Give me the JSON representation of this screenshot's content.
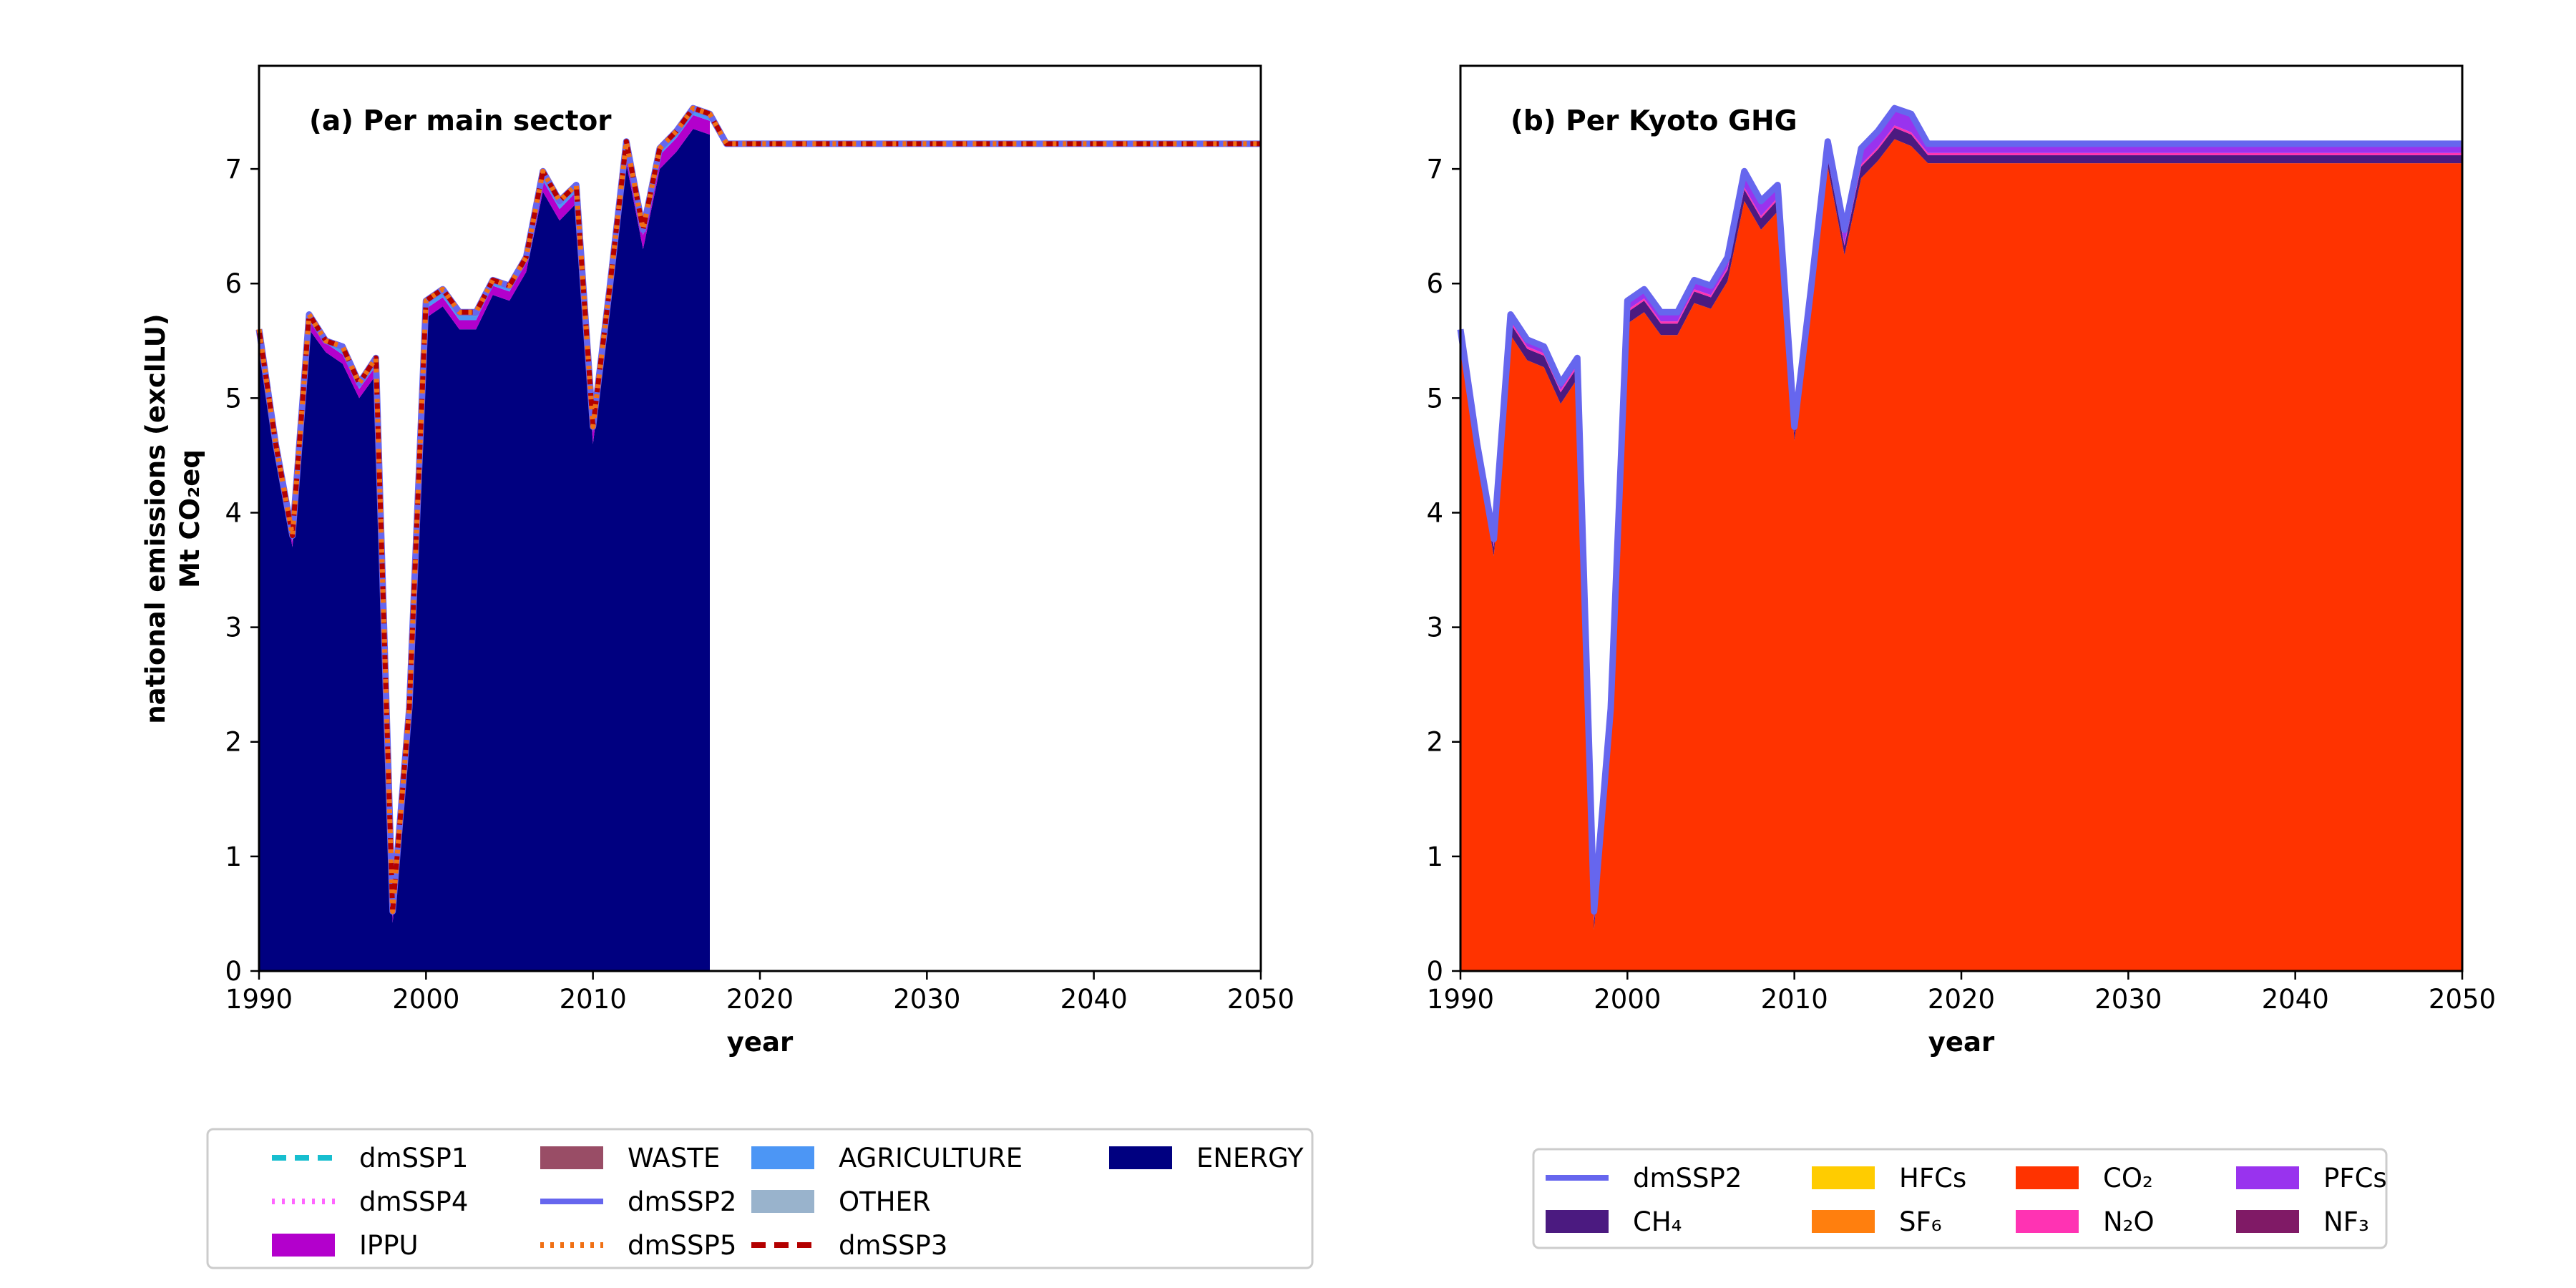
{
  "ylabel_line1": "national emissions (exclLU)",
  "ylabel_line2": "Mt CO₂eq",
  "chart_data": [
    {
      "type": "area",
      "title": "(a) Per main sector",
      "xlabel": "year",
      "xlim": [
        1990,
        2050
      ],
      "ylim": [
        0,
        7.9
      ],
      "xticks": [
        "1990",
        "2000",
        "2010",
        "2020",
        "2030",
        "2040",
        "2050"
      ],
      "yticks": [
        "0",
        "1",
        "2",
        "3",
        "4",
        "5",
        "6",
        "7"
      ],
      "grid": false,
      "legend_position": "bottom",
      "historical_x": [
        1990,
        1991,
        1992,
        1993,
        1994,
        1995,
        1996,
        1997,
        1998,
        1999,
        2000,
        2001,
        2002,
        2003,
        2004,
        2005,
        2006,
        2007,
        2008,
        2009,
        2010,
        2011,
        2012,
        2013,
        2014,
        2015,
        2016,
        2017
      ],
      "stacks": [
        {
          "name": "ENERGY",
          "color": "#000080",
          "values": [
            5.5,
            4.5,
            3.7,
            5.6,
            5.4,
            5.3,
            5.0,
            5.2,
            0.42,
            2.2,
            5.7,
            5.8,
            5.6,
            5.6,
            5.9,
            5.85,
            6.1,
            6.8,
            6.55,
            6.7,
            4.6,
            5.8,
            7.05,
            6.3,
            7.0,
            7.15,
            7.35,
            7.3
          ]
        },
        {
          "name": "IPPU",
          "color": "#B300CC",
          "values": [
            0.05,
            0.05,
            0.05,
            0.08,
            0.08,
            0.08,
            0.08,
            0.08,
            0.06,
            0.06,
            0.08,
            0.08,
            0.08,
            0.08,
            0.08,
            0.08,
            0.08,
            0.1,
            0.1,
            0.1,
            0.1,
            0.1,
            0.12,
            0.12,
            0.12,
            0.12,
            0.12,
            0.12
          ]
        },
        {
          "name": "AGRICULTURE",
          "color": "#4C96F5",
          "values": [
            0.04,
            0.04,
            0.04,
            0.04,
            0.04,
            0.04,
            0.04,
            0.04,
            0.03,
            0.03,
            0.04,
            0.04,
            0.04,
            0.04,
            0.04,
            0.04,
            0.04,
            0.04,
            0.04,
            0.04,
            0.04,
            0.04,
            0.04,
            0.04,
            0.04,
            0.04,
            0.04,
            0.04
          ]
        },
        {
          "name": "WASTE",
          "color": "#994D66",
          "values": [
            0.01,
            0.01,
            0.01,
            0.01,
            0.01,
            0.01,
            0.01,
            0.01,
            0.01,
            0.01,
            0.01,
            0.01,
            0.01,
            0.01,
            0.01,
            0.01,
            0.01,
            0.01,
            0.01,
            0.01,
            0.01,
            0.01,
            0.01,
            0.01,
            0.01,
            0.01,
            0.01,
            0.01
          ]
        },
        {
          "name": "OTHER",
          "color": "#99B3CC",
          "values": [
            0,
            0,
            0,
            0,
            0,
            0,
            0,
            0,
            0,
            0,
            0,
            0,
            0,
            0,
            0,
            0,
            0,
            0,
            0,
            0,
            0,
            0,
            0,
            0,
            0,
            0,
            0,
            0
          ]
        }
      ],
      "lines": [
        {
          "name": "dmSSP1",
          "color": "#17BECF",
          "dash": "20 12",
          "width": 7
        },
        {
          "name": "dmSSP2",
          "color": "#6666EE",
          "dash": "",
          "width": 9
        },
        {
          "name": "dmSSP3",
          "color": "#B30000",
          "dash": "20 12",
          "width": 7
        },
        {
          "name": "dmSSP4",
          "color": "#FF66FF",
          "dash": "4 10",
          "width": 7
        },
        {
          "name": "dmSSP5",
          "color": "#F07014",
          "dash": "5 9",
          "width": 7
        }
      ],
      "line_x": [
        1990,
        1991,
        1992,
        1993,
        1994,
        1995,
        1996,
        1997,
        1998,
        1999,
        2000,
        2001,
        2002,
        2003,
        2004,
        2005,
        2006,
        2007,
        2008,
        2009,
        2010,
        2011,
        2012,
        2013,
        2014,
        2015,
        2016,
        2017,
        2018,
        2020,
        2030,
        2040,
        2050
      ],
      "line_y": [
        5.6,
        4.6,
        3.8,
        5.73,
        5.5,
        5.45,
        5.13,
        5.35,
        0.52,
        2.3,
        5.85,
        5.95,
        5.75,
        5.75,
        6.03,
        5.98,
        6.23,
        6.98,
        6.72,
        6.86,
        4.75,
        5.96,
        7.24,
        6.47,
        7.18,
        7.33,
        7.53,
        7.48,
        7.22,
        7.22,
        7.22,
        7.22,
        7.22
      ],
      "legend": [
        {
          "label": "dmSSP1",
          "kind": "line",
          "color": "#17BECF",
          "dash": "20 12"
        },
        {
          "label": "dmSSP4",
          "kind": "line",
          "color": "#FF66FF",
          "dash": "4 10"
        },
        {
          "label": "IPPU",
          "kind": "patch",
          "color": "#B300CC"
        },
        {
          "label": "WASTE",
          "kind": "patch",
          "color": "#994D66"
        },
        {
          "label": "dmSSP2",
          "kind": "line",
          "color": "#6666EE",
          "dash": ""
        },
        {
          "label": "dmSSP5",
          "kind": "line",
          "color": "#F07014",
          "dash": "5 9"
        },
        {
          "label": "AGRICULTURE",
          "kind": "patch",
          "color": "#4C96F5"
        },
        {
          "label": "OTHER",
          "kind": "patch",
          "color": "#99B3CC"
        },
        {
          "label": "dmSSP3",
          "kind": "line",
          "color": "#B30000",
          "dash": "20 12"
        },
        {
          "label": "ENERGY",
          "kind": "patch",
          "color": "#000080"
        }
      ]
    },
    {
      "type": "area",
      "title": "(b) Per Kyoto GHG",
      "xlabel": "year",
      "xlim": [
        1990,
        2050
      ],
      "ylim": [
        0,
        7.9
      ],
      "xticks": [
        "1990",
        "2000",
        "2010",
        "2020",
        "2030",
        "2040",
        "2050"
      ],
      "yticks": [
        "0",
        "1",
        "2",
        "3",
        "4",
        "5",
        "6",
        "7"
      ],
      "grid": false,
      "legend_position": "bottom",
      "x": [
        1990,
        1991,
        1992,
        1993,
        1994,
        1995,
        1996,
        1997,
        1998,
        1999,
        2000,
        2001,
        2002,
        2003,
        2004,
        2005,
        2006,
        2007,
        2008,
        2009,
        2010,
        2011,
        2012,
        2013,
        2014,
        2015,
        2016,
        2017,
        2018,
        2050
      ],
      "stacks": [
        {
          "name": "CO₂",
          "color": "#FF3300",
          "values": [
            5.45,
            4.45,
            3.62,
            5.55,
            5.33,
            5.27,
            4.95,
            5.17,
            0.36,
            2.13,
            5.65,
            5.75,
            5.55,
            5.55,
            5.83,
            5.78,
            6.02,
            6.72,
            6.47,
            6.63,
            4.63,
            5.76,
            7.02,
            6.25,
            6.92,
            7.07,
            7.26,
            7.2,
            7.05,
            7.05
          ]
        },
        {
          "name": "CH₄",
          "color": "#4B1A80",
          "values": [
            0.08,
            0.08,
            0.08,
            0.1,
            0.1,
            0.1,
            0.1,
            0.1,
            0.08,
            0.08,
            0.1,
            0.1,
            0.1,
            0.1,
            0.1,
            0.1,
            0.1,
            0.1,
            0.1,
            0.1,
            0.07,
            0.1,
            0.07,
            0.08,
            0.1,
            0.1,
            0.1,
            0.1,
            0.07,
            0.07
          ]
        },
        {
          "name": "N₂O",
          "color": "#FF33B3",
          "values": [
            0.02,
            0.02,
            0.02,
            0.02,
            0.02,
            0.02,
            0.02,
            0.02,
            0.02,
            0.02,
            0.02,
            0.02,
            0.02,
            0.02,
            0.02,
            0.02,
            0.02,
            0.02,
            0.02,
            0.02,
            0.02,
            0.02,
            0.02,
            0.02,
            0.02,
            0.02,
            0.02,
            0.02,
            0.02,
            0.02
          ]
        },
        {
          "name": "HFCs",
          "color": "#FFCC00",
          "values": [
            0,
            0,
            0,
            0,
            0,
            0,
            0,
            0,
            0,
            0,
            0,
            0,
            0,
            0,
            0,
            0,
            0,
            0,
            0,
            0,
            0,
            0,
            0,
            0,
            0,
            0,
            0,
            0,
            0,
            0
          ]
        },
        {
          "name": "PFCs",
          "color": "#9933EE",
          "values": [
            0.05,
            0.05,
            0.05,
            0.06,
            0.06,
            0.06,
            0.06,
            0.06,
            0.06,
            0.06,
            0.08,
            0.08,
            0.08,
            0.08,
            0.08,
            0.08,
            0.09,
            0.14,
            0.13,
            0.11,
            0.03,
            0.08,
            0.13,
            0.12,
            0.16,
            0.14,
            0.15,
            0.16,
            0.08,
            0.08
          ]
        },
        {
          "name": "SF₆",
          "color": "#FF7F0E",
          "values": [
            0,
            0,
            0,
            0,
            0,
            0,
            0,
            0,
            0,
            0,
            0,
            0,
            0,
            0,
            0,
            0,
            0,
            0,
            0,
            0,
            0,
            0,
            0,
            0,
            0,
            0,
            0,
            0,
            0,
            0
          ]
        },
        {
          "name": "NF₃",
          "color": "#801A66",
          "values": [
            0,
            0,
            0,
            0,
            0,
            0,
            0,
            0,
            0,
            0,
            0,
            0,
            0,
            0,
            0,
            0,
            0,
            0,
            0,
            0,
            0,
            0,
            0,
            0,
            0,
            0,
            0,
            0,
            0,
            0
          ]
        }
      ],
      "lines": [
        {
          "name": "dmSSP2",
          "color": "#6666EE",
          "dash": "",
          "width": 9
        }
      ],
      "line_x": [
        1990,
        1991,
        1992,
        1993,
        1994,
        1995,
        1996,
        1997,
        1998,
        1999,
        2000,
        2001,
        2002,
        2003,
        2004,
        2005,
        2006,
        2007,
        2008,
        2009,
        2010,
        2011,
        2012,
        2013,
        2014,
        2015,
        2016,
        2017,
        2018,
        2050
      ],
      "line_y": [
        5.6,
        4.6,
        3.77,
        5.73,
        5.51,
        5.45,
        5.13,
        5.35,
        0.52,
        2.29,
        5.85,
        5.95,
        5.75,
        5.75,
        6.03,
        5.98,
        6.23,
        6.98,
        6.72,
        6.86,
        4.75,
        5.96,
        7.24,
        6.47,
        7.18,
        7.33,
        7.53,
        7.48,
        7.22,
        7.22
      ],
      "legend": [
        {
          "label": "dmSSP2",
          "kind": "line",
          "color": "#6666EE",
          "dash": ""
        },
        {
          "label": "CH₄",
          "kind": "patch",
          "color": "#4B1A80"
        },
        {
          "label": "HFCs",
          "kind": "patch",
          "color": "#FFCC00"
        },
        {
          "label": "SF₆",
          "kind": "patch",
          "color": "#FF7F0E"
        },
        {
          "label": "CO₂",
          "kind": "patch",
          "color": "#FF3300"
        },
        {
          "label": "N₂O",
          "kind": "patch",
          "color": "#FF33B3"
        },
        {
          "label": "PFCs",
          "kind": "patch",
          "color": "#9933EE"
        },
        {
          "label": "NF₃",
          "kind": "patch",
          "color": "#801A66"
        }
      ]
    }
  ]
}
